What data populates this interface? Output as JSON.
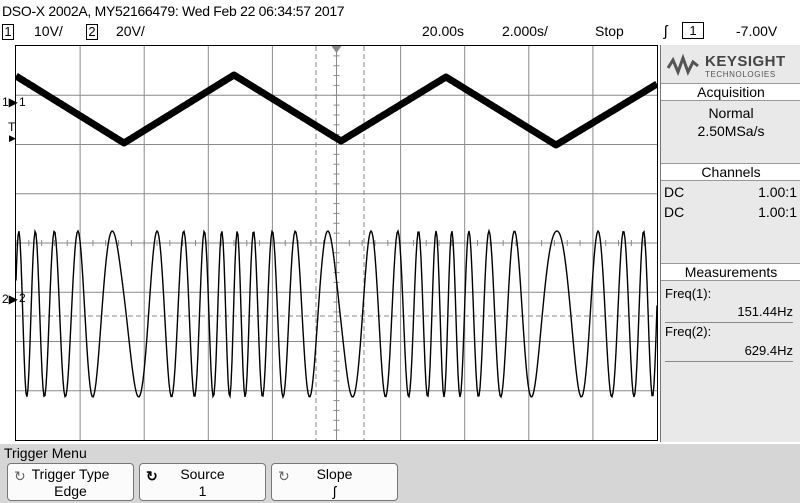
{
  "title": "DSO-X 2002A, MY52166479: Wed Feb 22 06:34:57 2017",
  "status": {
    "ch1_num": "1",
    "ch1_scale": "10V/",
    "ch2_num": "2",
    "ch2_scale": "20V/",
    "time_delay": "20.00s",
    "time_scale": "2.000s/",
    "run_state": "Stop",
    "trigger_slope_glyph": "ʃ",
    "trigger_source": "1",
    "trigger_level": "-7.00V"
  },
  "markers": {
    "ch1_label": "1",
    "ch2_label": "2",
    "trigger_mark": "T"
  },
  "panel": {
    "brand": "KEYSIGHT",
    "brand_sub": "TECHNOLOGIES",
    "acquisition": {
      "heading": "Acquisition",
      "mode": "Normal",
      "rate": "2.50MSa/s"
    },
    "channels": {
      "heading": "Channels",
      "rows": [
        {
          "coupling": "DC",
          "probe": "1.00:1"
        },
        {
          "coupling": "DC",
          "probe": "1.00:1"
        }
      ]
    },
    "measurements": {
      "heading": "Measurements",
      "items": [
        {
          "label": "Freq(1):",
          "value": "151.44Hz"
        },
        {
          "label": "Freq(2):",
          "value": "629.4Hz"
        }
      ]
    }
  },
  "menu": {
    "title": "Trigger Menu",
    "softkeys": [
      {
        "caption": "Trigger Type",
        "value": "Edge"
      },
      {
        "caption": "Source",
        "value": "1"
      },
      {
        "caption": "Slope",
        "value": "ʃ"
      }
    ]
  },
  "colors": {
    "trace": "#000000",
    "panel_bg": "#e9e9e9",
    "softkey_bg": "#d6d6d6"
  }
}
